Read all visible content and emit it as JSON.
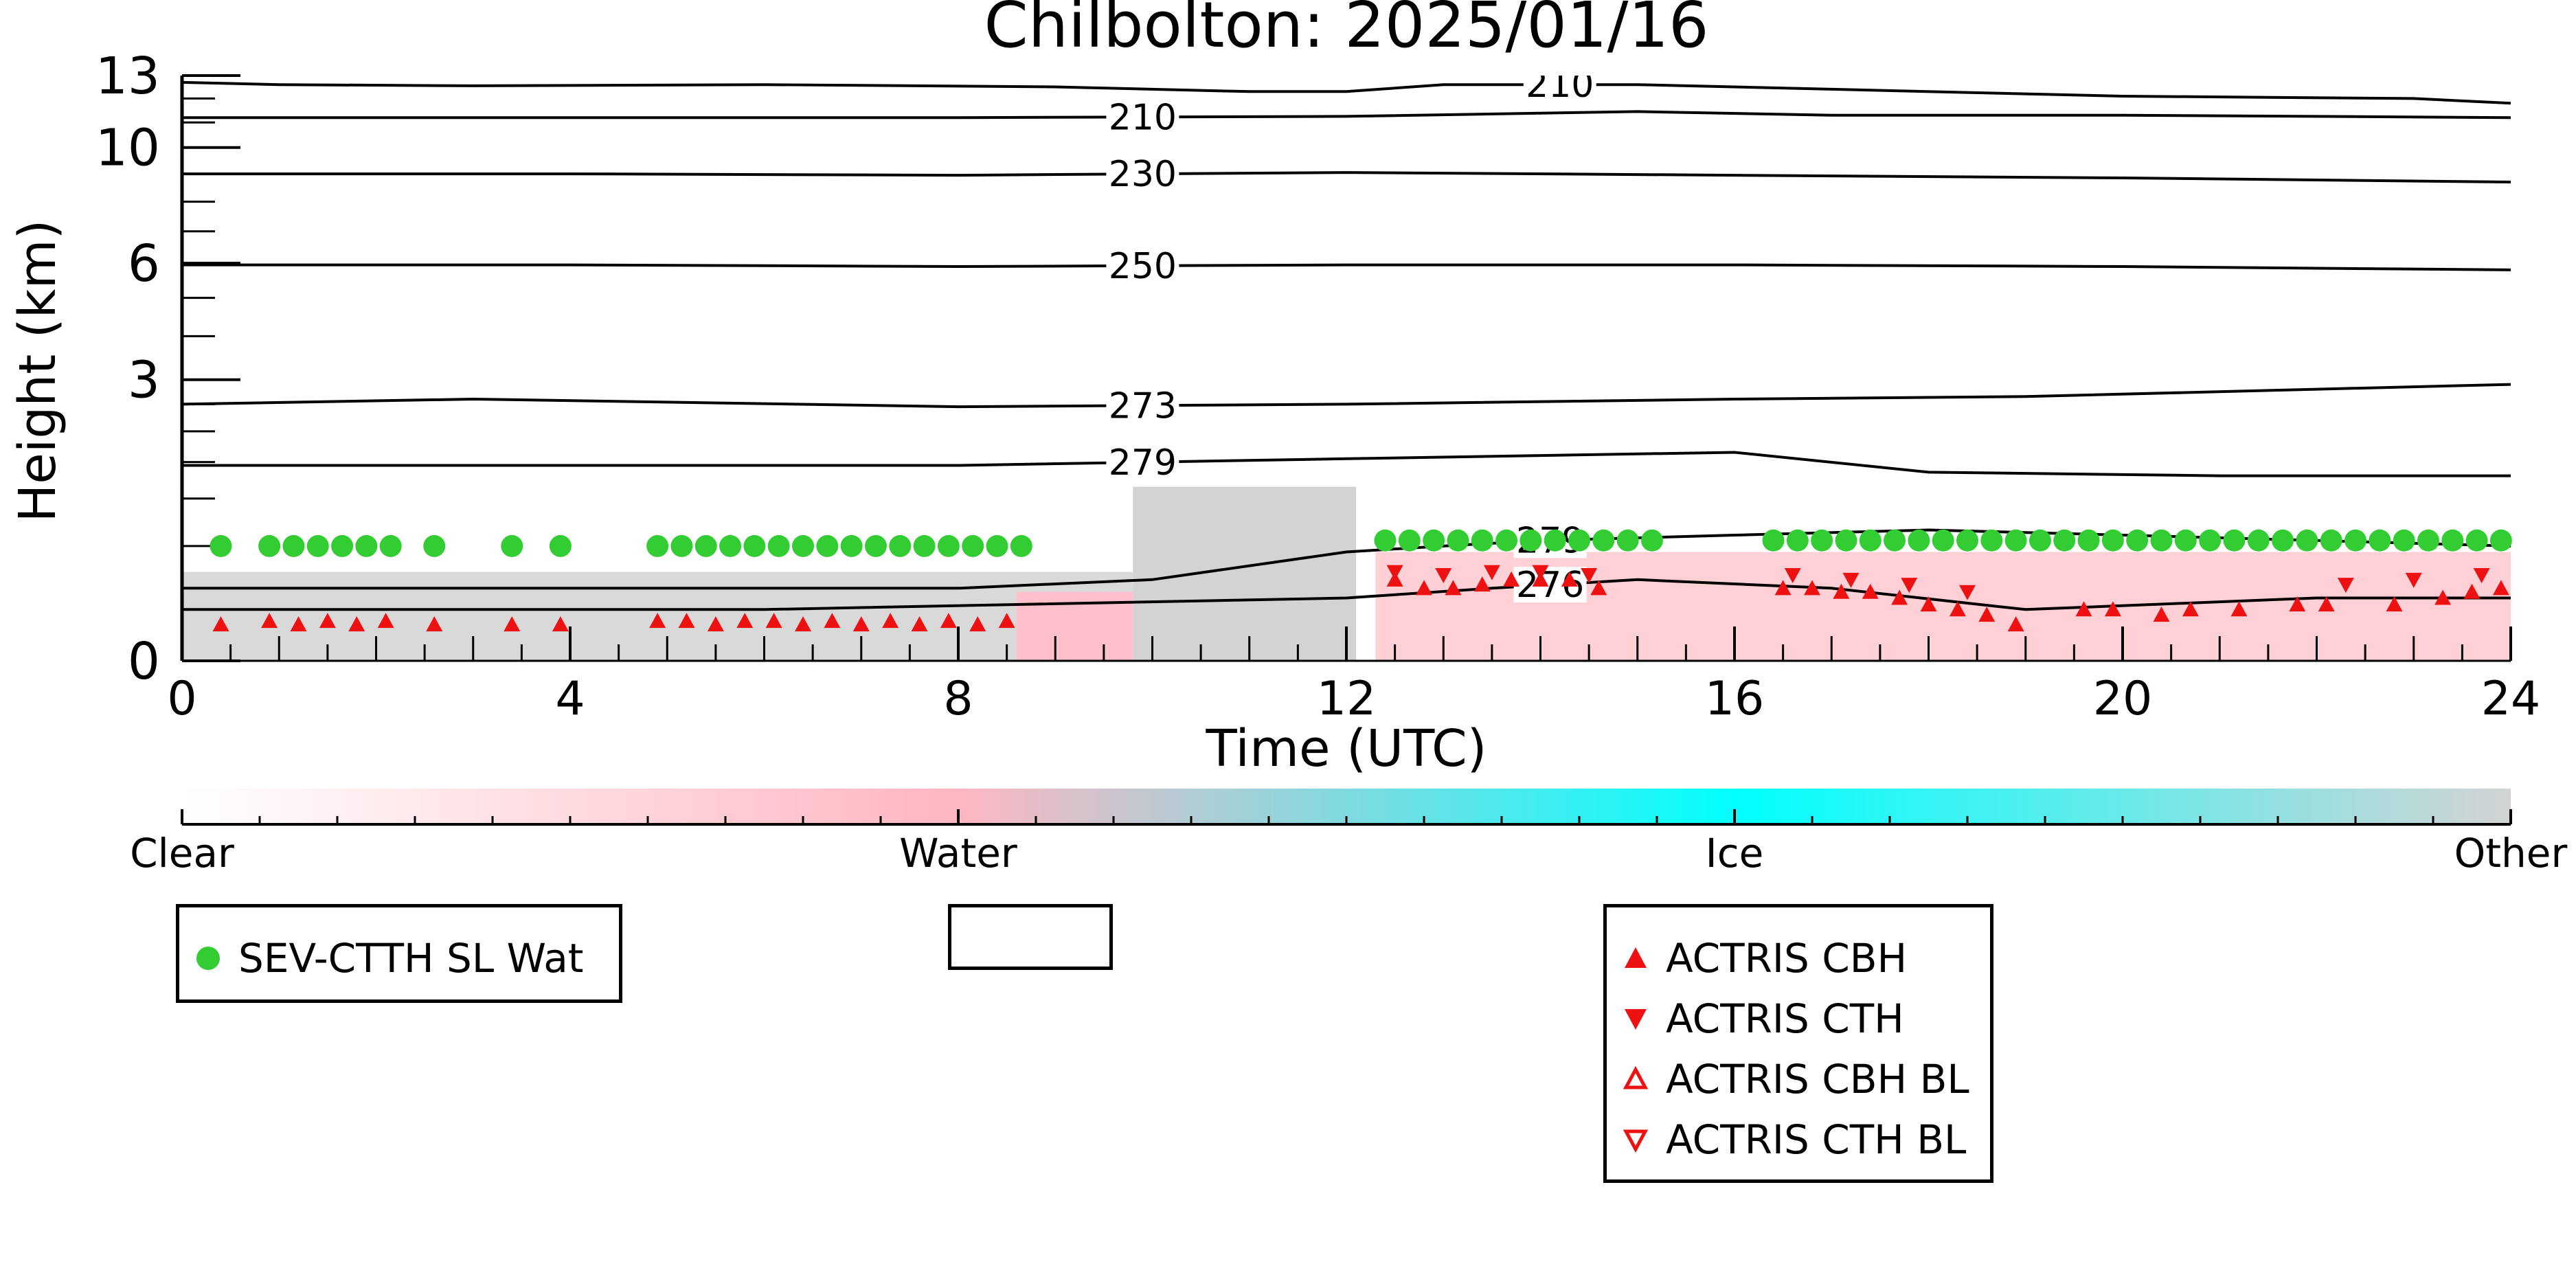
{
  "chart_data": {
    "type": "scatter",
    "title": "Chilbolton: 2025/01/16",
    "xlabel": "Time (UTC)",
    "ylabel": "Height (km)",
    "xlim": [
      0,
      24
    ],
    "ylim": [
      0,
      13
    ],
    "y_scale": "sqrt",
    "x_ticks": [
      0,
      4,
      8,
      12,
      16,
      20,
      24
    ],
    "y_ticks": [
      0,
      3,
      6,
      10,
      13
    ],
    "grid": false,
    "temperature_contours": [
      {
        "label": "210",
        "x": [
          0,
          1,
          3,
          6,
          9,
          11,
          12,
          13,
          15,
          17,
          20,
          23,
          24
        ],
        "y": [
          12.7,
          12.6,
          12.55,
          12.6,
          12.5,
          12.3,
          12.3,
          12.6,
          12.6,
          12.4,
          12.1,
          12.0,
          11.8
        ]
      },
      {
        "label": "210",
        "x": [
          0,
          4,
          8,
          12,
          15,
          17,
          20,
          24
        ],
        "y": [
          11.2,
          11.2,
          11.2,
          11.25,
          11.45,
          11.3,
          11.3,
          11.2
        ]
      },
      {
        "label": "230",
        "x": [
          0,
          4,
          8,
          12,
          16,
          20,
          24
        ],
        "y": [
          9.0,
          9.0,
          8.95,
          9.05,
          8.95,
          8.85,
          8.7
        ]
      },
      {
        "label": "250",
        "x": [
          0,
          4,
          8,
          12,
          16,
          20,
          24
        ],
        "y": [
          5.95,
          5.95,
          5.9,
          5.95,
          5.95,
          5.9,
          5.8
        ]
      },
      {
        "label": "273",
        "x": [
          0,
          3,
          8,
          12,
          16,
          19,
          22,
          24
        ],
        "y": [
          2.5,
          2.6,
          2.45,
          2.5,
          2.6,
          2.65,
          2.8,
          2.9
        ]
      },
      {
        "label": "279",
        "x": [
          0,
          4,
          8,
          12,
          14,
          16,
          18,
          21,
          24
        ],
        "y": [
          1.45,
          1.45,
          1.45,
          1.55,
          1.6,
          1.65,
          1.35,
          1.3,
          1.3
        ]
      },
      {
        "label": "279",
        "x": [
          0,
          3,
          8,
          10,
          12,
          13,
          14,
          16,
          18,
          20,
          22,
          24
        ],
        "y": [
          0.2,
          0.2,
          0.2,
          0.25,
          0.45,
          0.5,
          0.55,
          0.6,
          0.65,
          0.6,
          0.55,
          0.5
        ]
      },
      {
        "label": "276",
        "x": [
          0,
          6,
          12,
          13.5,
          15,
          17,
          19,
          22,
          24
        ],
        "y": [
          0.1,
          0.1,
          0.15,
          0.2,
          0.25,
          0.2,
          0.1,
          0.15,
          0.15
        ]
      }
    ],
    "classification_colorbar": {
      "labels": [
        "Clear",
        "Water",
        "Ice",
        "Other"
      ],
      "colors": [
        "#ffffff",
        "#ffb6c1",
        "#00ffff",
        "#d3d3d3"
      ]
    },
    "series": [
      {
        "name": "SEV-CTTH SL Wat",
        "marker": "filled-circle",
        "color": "#33cc33",
        "x": [
          0.4,
          0.9,
          1.15,
          1.4,
          1.65,
          1.9,
          2.15,
          2.6,
          3.4,
          3.9,
          4.9,
          5.15,
          5.4,
          5.65,
          5.9,
          6.15,
          6.4,
          6.65,
          6.9,
          7.15,
          7.4,
          7.65,
          7.9,
          8.15,
          8.4,
          8.65,
          12.4,
          12.65,
          12.9,
          13.15,
          13.4,
          13.65,
          13.9,
          14.15,
          14.4,
          14.65,
          14.9,
          15.15,
          16.4,
          16.65,
          16.9,
          17.15,
          17.4,
          17.65,
          17.9,
          18.15,
          18.4,
          18.65,
          18.9,
          19.15,
          19.4,
          19.65,
          19.9,
          20.15,
          20.4,
          20.65,
          20.9,
          21.15,
          21.4,
          21.65,
          21.9,
          22.15,
          22.4,
          22.65,
          22.9,
          23.15,
          23.4,
          23.65,
          23.9
        ],
        "y": [
          0.5,
          0.5,
          0.5,
          0.5,
          0.5,
          0.5,
          0.5,
          0.5,
          0.5,
          0.5,
          0.5,
          0.5,
          0.5,
          0.5,
          0.5,
          0.5,
          0.5,
          0.5,
          0.5,
          0.5,
          0.5,
          0.5,
          0.5,
          0.5,
          0.5,
          0.5,
          0.55,
          0.55,
          0.55,
          0.55,
          0.55,
          0.55,
          0.55,
          0.55,
          0.55,
          0.55,
          0.55,
          0.55,
          0.55,
          0.55,
          0.55,
          0.55,
          0.55,
          0.55,
          0.55,
          0.55,
          0.55,
          0.55,
          0.55,
          0.55,
          0.55,
          0.55,
          0.55,
          0.55,
          0.55,
          0.55,
          0.55,
          0.55,
          0.55,
          0.55,
          0.55,
          0.55,
          0.55,
          0.55,
          0.55,
          0.55,
          0.55,
          0.55,
          0.55
        ]
      },
      {
        "name": "ACTRIS CBH",
        "marker": "filled-triangle-up",
        "color": "#ee1111",
        "x": [
          0.4,
          0.9,
          1.2,
          1.5,
          1.8,
          2.1,
          2.6,
          3.4,
          3.9,
          4.9,
          5.2,
          5.5,
          5.8,
          6.1,
          6.4,
          6.7,
          7.0,
          7.3,
          7.6,
          7.9,
          8.2,
          8.5,
          12.5,
          12.8,
          13.1,
          13.4,
          13.7,
          14.0,
          14.3,
          14.6,
          16.5,
          16.8,
          17.1,
          17.4,
          17.7,
          18.0,
          18.3,
          18.6,
          18.9,
          19.6,
          19.9,
          20.4,
          20.7,
          21.2,
          21.8,
          22.1,
          22.8,
          23.3,
          23.6,
          23.9
        ],
        "y": [
          0.05,
          0.06,
          0.05,
          0.06,
          0.05,
          0.06,
          0.05,
          0.05,
          0.05,
          0.06,
          0.06,
          0.05,
          0.06,
          0.06,
          0.05,
          0.06,
          0.05,
          0.06,
          0.05,
          0.06,
          0.05,
          0.06,
          0.25,
          0.2,
          0.2,
          0.22,
          0.25,
          0.25,
          0.25,
          0.2,
          0.2,
          0.2,
          0.18,
          0.18,
          0.15,
          0.12,
          0.1,
          0.08,
          0.05,
          0.1,
          0.1,
          0.08,
          0.1,
          0.1,
          0.12,
          0.12,
          0.12,
          0.15,
          0.18,
          0.2
        ]
      },
      {
        "name": "ACTRIS CTH",
        "marker": "filled-triangle-down",
        "color": "#ee1111",
        "x": [
          12.5,
          13.0,
          13.5,
          14.0,
          14.5,
          16.6,
          17.2,
          17.8,
          18.4,
          22.3,
          23.0,
          23.7
        ],
        "y": [
          0.3,
          0.28,
          0.3,
          0.3,
          0.28,
          0.28,
          0.25,
          0.22,
          0.18,
          0.22,
          0.25,
          0.28
        ]
      },
      {
        "name": "ACTRIS CBH BL",
        "marker": "open-triangle-up",
        "color": "#ee1111",
        "x": [],
        "y": []
      },
      {
        "name": "ACTRIS CTH BL",
        "marker": "open-triangle-down",
        "color": "#ee1111",
        "x": [],
        "y": []
      }
    ],
    "legends": [
      {
        "entries": [
          "SEV-CTTH SL Wat"
        ]
      },
      {
        "entries": []
      },
      {
        "entries": [
          "ACTRIS CBH",
          "ACTRIS CTH",
          "ACTRIS CBH BL",
          "ACTRIS CTH BL"
        ]
      }
    ]
  }
}
